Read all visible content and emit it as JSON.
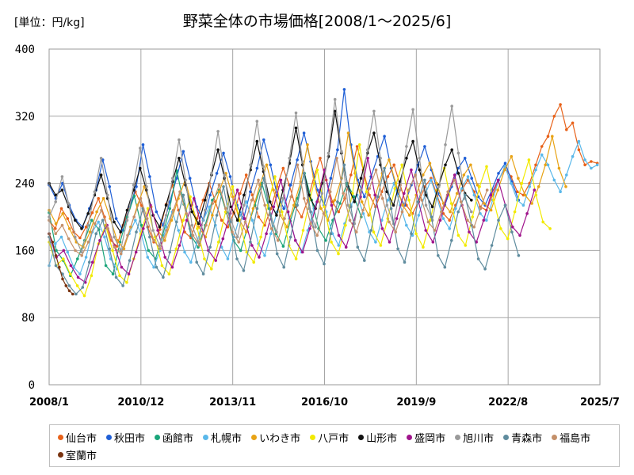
{
  "unit_label": "[単位：円/kg]",
  "chart_data": {
    "type": "line",
    "title": "野菜全体の市場価格[2008/1～2025/6]",
    "xlabel": "",
    "ylabel": "",
    "x_range": [
      "2008/1",
      "2025/7"
    ],
    "ylim": [
      0,
      400
    ],
    "yticks": [
      0,
      80,
      160,
      240,
      320,
      400
    ],
    "xticks": [
      "2008/1",
      "2010/12",
      "2013/11",
      "2016/10",
      "2019/9",
      "2022/8",
      "2025/7"
    ],
    "grid": true,
    "legend_position": "bottom",
    "series": [
      {
        "name": "仙台市",
        "color": "#e8621a",
        "start": "2008/1",
        "end": "2025/6",
        "values": [
          196,
          186,
          210,
          198,
          182,
          175,
          188,
          205,
          222,
          200,
          172,
          165,
          190,
          210,
          230,
          214,
          188,
          170,
          185,
          215,
          238,
          208,
          182,
          175,
          198,
          220,
          240,
          218,
          196,
          188,
          205,
          228,
          250,
          226,
          200,
          190,
          210,
          236,
          258,
          238,
          212,
          200,
          220,
          248,
          270,
          244,
          218,
          206,
          222,
          250,
          284,
          256,
          226,
          212,
          230,
          248,
          262,
          238,
          214,
          204,
          218,
          236,
          246,
          226,
          204,
          196,
          214,
          232,
          244,
          230,
          212,
          208,
          226,
          244,
          258,
          248,
          230,
          226,
          240,
          262,
          284,
          296,
          320,
          334,
          304,
          312,
          280,
          262,
          266,
          264
        ]
      },
      {
        "name": "秋田市",
        "color": "#1f5fd6",
        "start": "2008/1",
        "end": "2022/12",
        "values": [
          238,
          222,
          240,
          214,
          196,
          188,
          210,
          232,
          268,
          236,
          198,
          184,
          212,
          236,
          286,
          248,
          206,
          190,
          218,
          246,
          278,
          246,
          212,
          196,
          226,
          252,
          276,
          248,
          214,
          198,
          230,
          258,
          292,
          262,
          226,
          210,
          238,
          268,
          300,
          266,
          232,
          214,
          246,
          280,
          352,
          286,
          244,
          224,
          248,
          272,
          296,
          258,
          228,
          214,
          238,
          262,
          284,
          256,
          228,
          214,
          236,
          258,
          270,
          246,
          224,
          214,
          232,
          252,
          264,
          242,
          220
        ]
      },
      {
        "name": "函館市",
        "color": "#1aa57a",
        "start": "2008/1",
        "end": "2017/12",
        "values": [
          205,
          160,
          148,
          130,
          150,
          172,
          196,
          185,
          142,
          132,
          170,
          200,
          225,
          190,
          160,
          150,
          178,
          210,
          255,
          215,
          178,
          164,
          190,
          220,
          232,
          205,
          172,
          160,
          188,
          214,
          240,
          210,
          180,
          165,
          195,
          222,
          252,
          220,
          186,
          172,
          196,
          216,
          240,
          224,
          200
        ]
      },
      {
        "name": "札幌市",
        "color": "#5ab8ea",
        "start": "2008/1",
        "end": "2025/6",
        "values": [
          142,
          168,
          176,
          158,
          140,
          132,
          152,
          182,
          194,
          176,
          150,
          138,
          162,
          180,
          196,
          178,
          152,
          140,
          160,
          188,
          206,
          184,
          158,
          146,
          170,
          196,
          212,
          190,
          164,
          150,
          176,
          202,
          218,
          196,
          168,
          154,
          180,
          206,
          222,
          198,
          172,
          158,
          184,
          210,
          232,
          206,
          180,
          166,
          192,
          214,
          226,
          204,
          182,
          170,
          196,
          220,
          240,
          214,
          190,
          178,
          202,
          226,
          244,
          222,
          198,
          186,
          210,
          234,
          248,
          226,
          204,
          196,
          220,
          244,
          260,
          240,
          220,
          214,
          236,
          256,
          274,
          262,
          244,
          230,
          250,
          272,
          290,
          268,
          258,
          262
        ]
      },
      {
        "name": "いわき市",
        "color": "#e8a316",
        "start": "2008/1",
        "end": "2024/6",
        "values": [
          208,
          192,
          204,
          186,
          170,
          164,
          182,
          206,
          222,
          198,
          172,
          162,
          188,
          214,
          236,
          212,
          184,
          172,
          196,
          222,
          244,
          214,
          188,
          176,
          202,
          230,
          252,
          224,
          196,
          182,
          210,
          238,
          262,
          232,
          202,
          188,
          214,
          242,
          286,
          240,
          210,
          196,
          220,
          246,
          300,
          252,
          218,
          202,
          226,
          252,
          268,
          240,
          214,
          202,
          226,
          250,
          264,
          240,
          216,
          206,
          228,
          250,
          262,
          238,
          216,
          208,
          232,
          256,
          272,
          246,
          226,
          216,
          236,
          262,
          296,
          258,
          236
        ]
      },
      {
        "name": "八戸市",
        "color": "#f2ea00",
        "start": "2008/1",
        "end": "2023/12",
        "values": [
          170,
          142,
          150,
          132,
          118,
          106,
          130,
          168,
          190,
          160,
          130,
          122,
          150,
          180,
          210,
          176,
          142,
          132,
          162,
          196,
          224,
          186,
          150,
          138,
          170,
          206,
          236,
          196,
          158,
          146,
          176,
          214,
          248,
          206,
          166,
          150,
          184,
          222,
          256,
          212,
          170,
          156,
          190,
          228,
          286,
          230,
          182,
          166,
          198,
          234,
          262,
          220,
          180,
          164,
          196,
          232,
          258,
          216,
          178,
          166,
          200,
          236,
          260,
          220,
          186,
          174,
          206,
          240,
          268,
          226,
          194,
          186
        ]
      },
      {
        "name": "山形市",
        "color": "#111111",
        "start": "2008/1",
        "end": "2021/6",
        "values": [
          240,
          226,
          232,
          212,
          196,
          186,
          204,
          226,
          250,
          222,
          194,
          182,
          208,
          232,
          258,
          232,
          202,
          188,
          214,
          242,
          270,
          238,
          206,
          192,
          220,
          250,
          280,
          246,
          212,
          196,
          226,
          256,
          290,
          254,
          218,
          202,
          232,
          264,
          306,
          262,
          226,
          210,
          240,
          272,
          326,
          276,
          236,
          218,
          246,
          276,
          300,
          262,
          230,
          214,
          242,
          270,
          290,
          256,
          226,
          212,
          238,
          262,
          280,
          252,
          228,
          220
        ]
      },
      {
        "name": "盛岡市",
        "color": "#a0148c",
        "start": "2008/1",
        "end": "2023/6",
        "values": [
          180,
          152,
          160,
          142,
          128,
          122,
          146,
          172,
          190,
          166,
          140,
          132,
          158,
          186,
          214,
          184,
          152,
          140,
          166,
          196,
          222,
          190,
          160,
          148,
          174,
          204,
          232,
          198,
          166,
          152,
          180,
          212,
          244,
          206,
          172,
          158,
          186,
          218,
          256,
          214,
          178,
          164,
          192,
          224,
          270,
          226,
          186,
          170,
          198,
          228,
          256,
          218,
          184,
          170,
          196,
          226,
          250,
          214,
          182,
          170,
          196,
          226,
          244,
          214,
          188,
          178,
          204,
          232
        ]
      },
      {
        "name": "旭川市",
        "color": "#9a9a9a",
        "start": "2008/1",
        "end": "2021/6",
        "values": [
          200,
          218,
          248,
          216,
          176,
          158,
          190,
          230,
          270,
          226,
          176,
          160,
          196,
          238,
          282,
          236,
          184,
          166,
          202,
          246,
          292,
          244,
          190,
          170,
          208,
          252,
          302,
          250,
          196,
          176,
          214,
          262,
          314,
          260,
          204,
          182,
          222,
          270,
          324,
          266,
          210,
          188,
          228,
          276,
          340,
          278,
          214,
          192,
          232,
          280,
          326,
          270,
          214,
          192,
          232,
          284,
          328,
          270,
          214,
          196,
          236,
          286,
          332,
          276,
          222,
          206
        ]
      },
      {
        "name": "青森市",
        "color": "#5f8c9e",
        "start": "2008/1",
        "end": "2022/12",
        "values": [
          176,
          142,
          132,
          118,
          108,
          116,
          146,
          180,
          196,
          162,
          128,
          118,
          148,
          182,
          210,
          176,
          140,
          128,
          158,
          194,
          226,
          186,
          146,
          132,
          164,
          202,
          236,
          194,
          150,
          136,
          170,
          210,
          246,
          202,
          156,
          140,
          176,
          214,
          252,
          206,
          160,
          144,
          180,
          218,
          262,
          212,
          164,
          148,
          184,
          224,
          258,
          210,
          162,
          146,
          180,
          218,
          244,
          200,
          154,
          140,
          172,
          206,
          226,
          190,
          150,
          138,
          166,
          196,
          214,
          182,
          154
        ]
      },
      {
        "name": "福島市",
        "color": "#c4906a",
        "start": "2008/1",
        "end": "2021/12",
        "values": [
          196,
          180,
          190,
          174,
          160,
          154,
          170,
          192,
          208,
          186,
          164,
          156,
          178,
          200,
          222,
          198,
          172,
          162,
          184,
          208,
          230,
          204,
          178,
          166,
          190,
          216,
          238,
          210,
          182,
          170,
          194,
          220,
          244,
          214,
          186,
          172,
          198,
          224,
          262,
          222,
          192,
          178,
          204,
          230,
          270,
          228,
          196,
          182,
          208,
          234,
          256,
          222,
          194,
          182,
          206,
          232,
          250,
          220,
          194,
          184,
          206,
          230,
          244,
          218,
          196,
          188,
          210,
          232
        ]
      },
      {
        "name": "室蘭市",
        "color": "#7a3410",
        "start": "2008/1",
        "end": "2008/10",
        "values": [
          180,
          170,
          154,
          140,
          126,
          118,
          112,
          108
        ]
      }
    ]
  }
}
